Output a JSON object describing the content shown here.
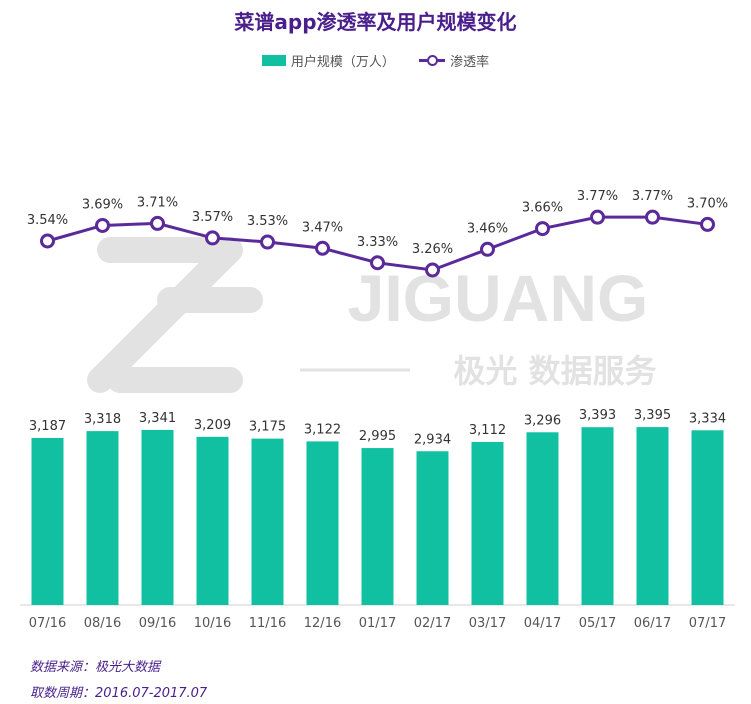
{
  "chart_data": {
    "type": "bar+line",
    "title": "菜谱app渗透率及用户规模变化",
    "categories": [
      "07/16",
      "08/16",
      "09/16",
      "10/16",
      "11/16",
      "12/16",
      "01/17",
      "02/17",
      "03/17",
      "04/17",
      "05/17",
      "06/17",
      "07/17"
    ],
    "series": [
      {
        "name": "用户规模（万人）",
        "type": "bar",
        "values": [
          3187,
          3318,
          3341,
          3209,
          3175,
          3122,
          2995,
          2934,
          3112,
          3296,
          3393,
          3395,
          3334
        ],
        "labels": [
          "3,187",
          "3,318",
          "3,341",
          "3,209",
          "3,175",
          "3,122",
          "2,995",
          "2,934",
          "3,112",
          "3,296",
          "3,393",
          "3,395",
          "3,334"
        ]
      },
      {
        "name": "渗透率",
        "type": "line",
        "values": [
          3.54,
          3.69,
          3.71,
          3.57,
          3.53,
          3.47,
          3.33,
          3.26,
          3.46,
          3.66,
          3.77,
          3.77,
          3.7
        ],
        "labels": [
          "3.54%",
          "3.69%",
          "3.71%",
          "3.57%",
          "3.53%",
          "3.47%",
          "3.33%",
          "3.26%",
          "3.46%",
          "3.66%",
          "3.77%",
          "3.77%",
          "3.70%"
        ]
      }
    ],
    "legend_position": "top-center",
    "colors": {
      "bar": "#10c0a0",
      "line": "#5b2a9a",
      "title": "#4a1f8c"
    }
  },
  "watermark": {
    "brand": "JIGUANG",
    "subtitle": "极光 数据服务"
  },
  "footer": {
    "source": "数据来源：极光大数据",
    "period": "取数周期：2016.07-2017.07"
  }
}
